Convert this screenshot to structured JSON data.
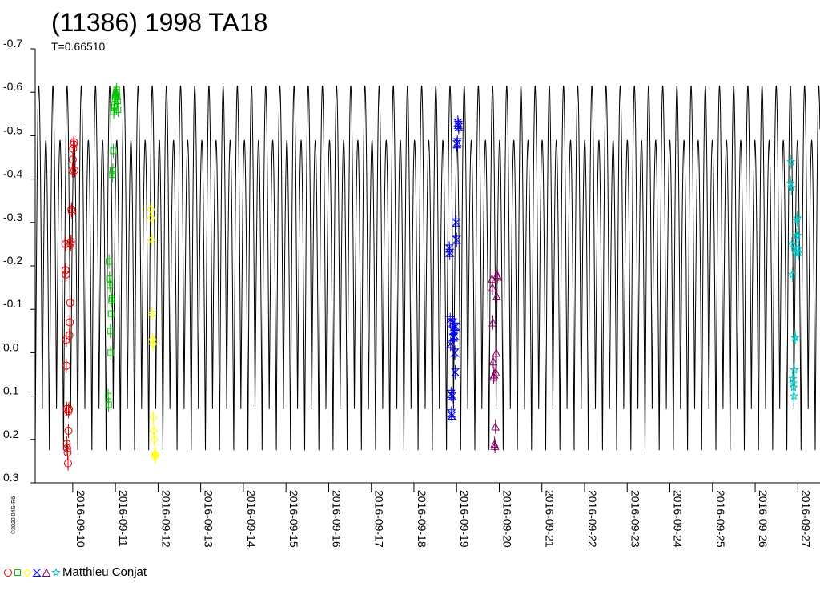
{
  "chart_data": {
    "type": "scatter",
    "title": "(11386) 1998 TA18",
    "subtitle": "T=0.66510",
    "xlabel": "",
    "ylabel": "",
    "y_inverted": true,
    "ylim": [
      -0.7,
      0.3
    ],
    "yticks": [
      -0.7,
      -0.6,
      -0.5,
      -0.4,
      -0.3,
      -0.2,
      -0.1,
      0.0,
      0.1,
      0.2,
      0.3
    ],
    "ytick_labels": [
      "-0.7",
      "-0.6",
      "-0.5",
      "-0.4",
      "-0.3",
      "-0.2",
      "-0.1",
      "0.0",
      "0.1",
      "0.2",
      "0.3"
    ],
    "xlim": [
      "2016-09-09.12",
      "2016-09-27.52"
    ],
    "xticks": [
      "2016-09-10",
      "2016-09-11",
      "2016-09-12",
      "2016-09-13",
      "2016-09-14",
      "2016-09-15",
      "2016-09-16",
      "2016-09-17",
      "2016-09-18",
      "2016-09-19",
      "2016-09-20",
      "2016-09-21",
      "2016-09-22",
      "2016-09-23",
      "2016-09-24",
      "2016-09-25",
      "2016-09-26",
      "2016-09-27"
    ],
    "grid": false,
    "model_curve": {
      "period_days": 0.3325,
      "amplitude_min": -0.615,
      "amplitude_max": 0.225,
      "secondary_max": -0.49,
      "secondary_min": 0.13
    },
    "legend": {
      "placement": "bottom-left",
      "label": "Matthieu Conjat",
      "symbols": [
        "circle",
        "square",
        "diamond",
        "bowtie",
        "triangle",
        "star"
      ]
    },
    "series": [
      {
        "marker": "circle",
        "color": "#e00000",
        "x": [
          "2016-09-09.83",
          "2016-09-09.83",
          "2016-09-09.84",
          "2016-09-09.85",
          "2016-09-09.85",
          "2016-09-09.86",
          "2016-09-09.86",
          "2016-09-09.87",
          "2016-09-09.88",
          "2016-09-09.89",
          "2016-09-09.90",
          "2016-09-09.90",
          "2016-09-09.91",
          "2016-09-09.92",
          "2016-09-09.93",
          "2016-09-09.94",
          "2016-09-09.95",
          "2016-09-09.96",
          "2016-09-09.97",
          "2016-09-09.98",
          "2016-09-09.99",
          "2016-09-10.00",
          "2016-09-10.01",
          "2016-09-10.02",
          "2016-09-10.03",
          "2016-09-10.04"
        ],
        "y": [
          -0.25,
          -0.19,
          -0.18,
          -0.03,
          0.03,
          0.13,
          0.21,
          0.22,
          0.23,
          0.255,
          0.135,
          0.18,
          0.13,
          -0.04,
          -0.07,
          -0.115,
          -0.25,
          -0.255,
          -0.33,
          -0.325,
          -0.42,
          -0.445,
          -0.47,
          -0.48,
          -0.485,
          -0.42
        ]
      },
      {
        "marker": "square",
        "color": "#00c000",
        "x": [
          "2016-09-10.83",
          "2016-09-10.84",
          "2016-09-10.85",
          "2016-09-10.86",
          "2016-09-10.87",
          "2016-09-10.88",
          "2016-09-10.89",
          "2016-09-10.90",
          "2016-09-10.91",
          "2016-09-10.92",
          "2016-09-10.93",
          "2016-09-10.94",
          "2016-09-10.95",
          "2016-09-10.96",
          "2016-09-10.97",
          "2016-09-10.98",
          "2016-09-10.99",
          "2016-09-11.00",
          "2016-09-11.01",
          "2016-09-11.02",
          "2016-09-11.03",
          "2016-09-11.04",
          "2016-09-11.05",
          "2016-09-11.06"
        ],
        "y": [
          0.1,
          0.12,
          -0.21,
          -0.17,
          -0.155,
          -0.05,
          0.0,
          -0.09,
          -0.12,
          -0.125,
          -0.41,
          -0.42,
          -0.465,
          -0.555,
          -0.565,
          -0.57,
          -0.585,
          -0.59,
          -0.595,
          -0.6,
          -0.605,
          -0.59,
          -0.58,
          -0.56
        ]
      },
      {
        "marker": "diamond",
        "color": "#ffff00",
        "x": [
          "2016-09-11.83",
          "2016-09-11.84",
          "2016-09-11.85",
          "2016-09-11.86",
          "2016-09-11.87",
          "2016-09-11.88",
          "2016-09-11.89",
          "2016-09-11.90",
          "2016-09-11.91",
          "2016-09-11.92",
          "2016-09-11.93",
          "2016-09-11.94"
        ],
        "y": [
          -0.33,
          -0.31,
          -0.26,
          -0.09,
          -0.03,
          -0.02,
          0.15,
          0.18,
          0.2,
          0.235,
          0.24,
          0.235
        ]
      },
      {
        "marker": "bowtie",
        "color": "#0000e0",
        "x": [
          "2016-09-18.83",
          "2016-09-18.84",
          "2016-09-18.85",
          "2016-09-18.86",
          "2016-09-18.87",
          "2016-09-18.88",
          "2016-09-18.89",
          "2016-09-18.90",
          "2016-09-18.91",
          "2016-09-18.92",
          "2016-09-18.93",
          "2016-09-18.94",
          "2016-09-18.95",
          "2016-09-18.96",
          "2016-09-18.97",
          "2016-09-18.98",
          "2016-09-18.99",
          "2016-09-19.00",
          "2016-09-19.01",
          "2016-09-19.02",
          "2016-09-19.03",
          "2016-09-19.04",
          "2016-09-19.05"
        ],
        "y": [
          -0.24,
          -0.23,
          -0.075,
          -0.02,
          0.095,
          0.14,
          0.145,
          0.1,
          -0.07,
          -0.05,
          -0.035,
          -0.06,
          -0.04,
          0.0,
          0.045,
          -0.06,
          -0.3,
          -0.26,
          -0.48,
          -0.485,
          -0.53,
          -0.525,
          -0.52
        ]
      },
      {
        "marker": "triangle",
        "color": "#800060",
        "x": [
          "2016-09-19.83",
          "2016-09-19.84",
          "2016-09-19.85",
          "2016-09-19.86",
          "2016-09-19.87",
          "2016-09-19.88",
          "2016-09-19.89",
          "2016-09-19.90",
          "2016-09-19.91",
          "2016-09-19.92",
          "2016-09-19.93",
          "2016-09-19.94",
          "2016-09-19.95",
          "2016-09-19.96"
        ],
        "y": [
          -0.17,
          -0.15,
          -0.07,
          0.02,
          0.055,
          0.05,
          0.21,
          0.215,
          0.17,
          0.045,
          0.0,
          -0.13,
          -0.18,
          -0.175
        ]
      },
      {
        "marker": "star",
        "color": "#00c0c0",
        "x": [
          "2016-09-26.83",
          "2016-09-26.84",
          "2016-09-26.85",
          "2016-09-26.86",
          "2016-09-26.87",
          "2016-09-26.88",
          "2016-09-26.89",
          "2016-09-26.90",
          "2016-09-26.91",
          "2016-09-26.92",
          "2016-09-26.93",
          "2016-09-26.94",
          "2016-09-26.95",
          "2016-09-26.96",
          "2016-09-26.97",
          "2016-09-26.98",
          "2016-09-26.99",
          "2016-09-27.00",
          "2016-09-27.01",
          "2016-09-27.02"
        ],
        "y": [
          -0.39,
          -0.44,
          -0.38,
          -0.25,
          -0.18,
          0.06,
          0.07,
          0.08,
          0.1,
          0.04,
          -0.035,
          -0.035,
          -0.23,
          -0.24,
          -0.27,
          -0.305,
          -0.31,
          -0.27,
          -0.24,
          -0.23
        ]
      }
    ]
  },
  "footer": {
    "copyright": "©2020 04G-R6"
  }
}
